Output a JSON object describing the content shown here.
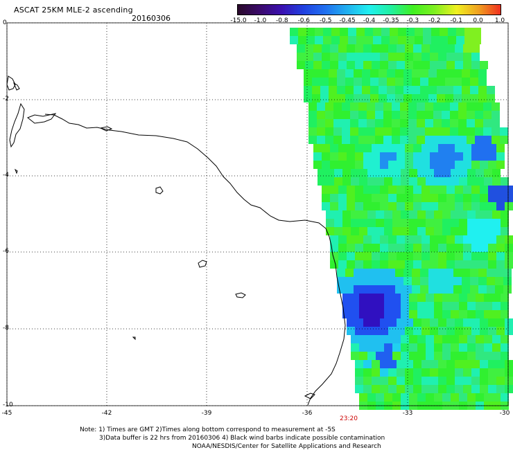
{
  "header": {
    "title": "ASCAT 25KM MLE-2 ascending",
    "date": "20160306"
  },
  "colorbar": {
    "ticks": [
      "-15.0",
      "-1.0",
      "-0.8",
      "-0.6",
      "-0.5",
      "-0.45",
      "-0.4",
      "-0.35",
      "-0.3",
      "-0.2",
      "-0.1",
      "0.0",
      "1.0"
    ],
    "colors": [
      "#2a0a2a",
      "#3a0a6a",
      "#3a10b0",
      "#2040e0",
      "#2070f0",
      "#20b0f0",
      "#20f0f0",
      "#20f0a0",
      "#40f020",
      "#80f020",
      "#f0f020",
      "#f0a020",
      "#f03020"
    ]
  },
  "map": {
    "y_ticks": [
      "0",
      "-2",
      "-4",
      "-6",
      "-8",
      "-10"
    ],
    "x_ticks": [
      "-45",
      "-42",
      "-39",
      "-36",
      "-33",
      "-30"
    ],
    "timestamp": "23:20"
  },
  "footer": {
    "line1": "Note: 1) Times are GMT 2)Times along bottom correspond to measurement at -5S",
    "line2": "3)Data buffer is 22 hrs from 20160306 4) Black wind barbs indicate possible contamination",
    "line3": "NOAA/NESDIS/Center for Satellite Applications and Research"
  }
}
